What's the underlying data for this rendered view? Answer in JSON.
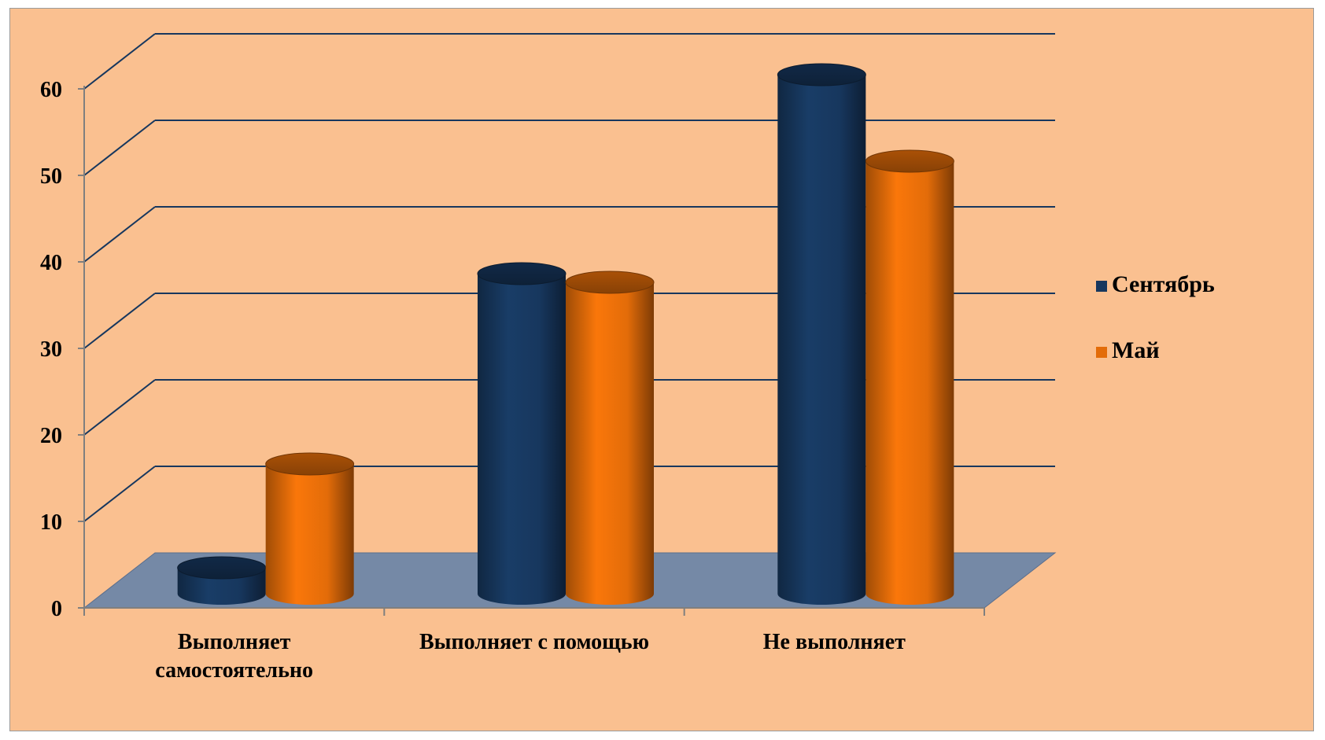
{
  "chart_data": {
    "type": "bar",
    "bar_shape": "cylinder-3d",
    "categories": [
      [
        "Выполняет",
        "самостоятельно"
      ],
      [
        "Выполняет с помощью"
      ],
      [
        "Не выполняет"
      ]
    ],
    "series": [
      {
        "name": "Сентябрь",
        "color": "#17375E",
        "values": [
          3,
          37,
          60
        ]
      },
      {
        "name": "Май",
        "color": "#E36C09",
        "values": [
          15,
          36,
          50
        ]
      }
    ],
    "ylim": [
      0,
      60
    ],
    "yticks": [
      0,
      10,
      20,
      30,
      40,
      50,
      60
    ],
    "grid": true,
    "legend_position": "right",
    "background_color": "#FAC090",
    "floor_color": "#7589A6"
  }
}
